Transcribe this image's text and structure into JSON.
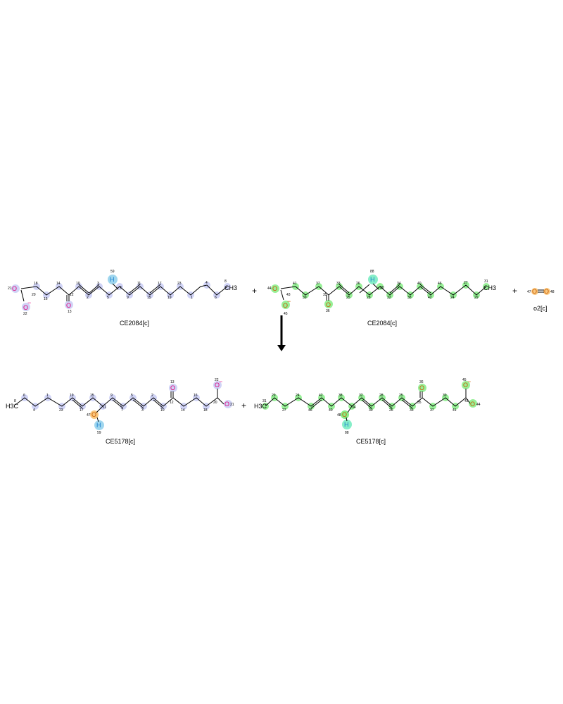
{
  "reaction": {
    "reactants": [
      {
        "label": "CE2084[c]",
        "color": "#b9bff0",
        "terminal": "CH3",
        "hydrogen": "H",
        "h_index": "59"
      },
      {
        "label": "CE2084[c]",
        "color": "#7ee87e",
        "terminal": "CH3",
        "hydrogen": "H",
        "h_index": "88"
      },
      {
        "label": "o2[c]",
        "color": "#f7c68a",
        "atoms": [
          "47",
          "48"
        ]
      }
    ],
    "products": [
      {
        "label": "CE5178[c]",
        "color": "#b9bff0",
        "terminal": "H3C",
        "hydrogen": "H",
        "h_index": "59",
        "o_index": "47"
      },
      {
        "label": "CE5178[c]",
        "color": "#7ee87e",
        "terminal": "H3C",
        "hydrogen": "H",
        "h_index": "88",
        "o_index": "48"
      }
    ],
    "plus_sign": "+",
    "oxygen_symbol": "O",
    "carboxylate_charge": "−"
  },
  "colors": {
    "blue_highlight": "#c8ccf5",
    "green_highlight": "#86ee86",
    "orange_highlight": "#f9c77e",
    "oxygen": "#e0007a",
    "hydrogen": "#1a7fd0",
    "arrow": "#000000"
  }
}
